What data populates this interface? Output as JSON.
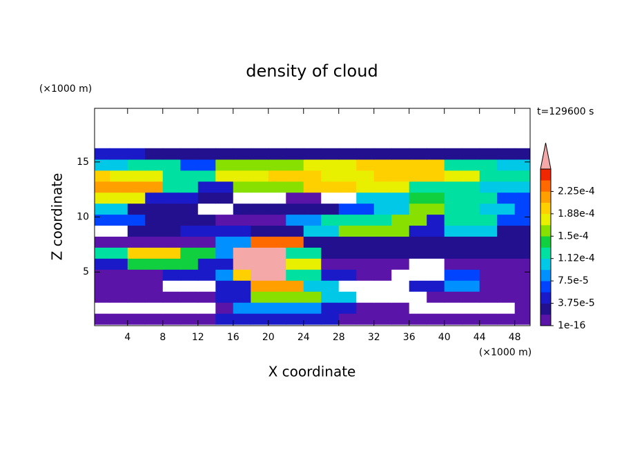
{
  "chart_data": {
    "type": "contour",
    "title": "density of cloud",
    "x_label": "X coordinate",
    "y_label": "Z coordinate",
    "x_unit": "(×1000 m)",
    "y_unit": "(×1000 m)",
    "annotation": "t=129600 s",
    "xlim": [
      0.25,
      49.75
    ],
    "ylim": [
      0.125,
      19.875
    ],
    "xticks": [
      4,
      8,
      12,
      16,
      20,
      24,
      28,
      32,
      36,
      40,
      44,
      48
    ],
    "yticks": [
      5,
      10,
      15
    ],
    "x": [
      1,
      3,
      5,
      7,
      9,
      11,
      13,
      15,
      17,
      19,
      21,
      23,
      25,
      27,
      29,
      31,
      33,
      35,
      37,
      39,
      41,
      43,
      45,
      47,
      49
    ],
    "z": [
      0.75,
      1.75,
      2.75,
      3.75,
      4.75,
      5.75,
      6.75,
      7.75,
      8.75,
      9.75,
      10.75,
      11.75,
      12.75,
      13.75,
      14.75,
      15.75
    ],
    "values": [
      [
        1e-05,
        1e-05,
        1e-05,
        1e-05,
        1e-05,
        1e-05,
        1e-05,
        4e-05,
        4e-05,
        4e-05,
        4e-05,
        4e-05,
        4e-05,
        4e-05,
        1e-05,
        1e-05,
        1e-05,
        1e-05,
        1e-05,
        1e-05,
        1e-05,
        1e-05,
        1e-05,
        1e-05,
        1e-05
      ],
      [
        0,
        0,
        0,
        0,
        0,
        0,
        0,
        1e-05,
        8e-05,
        8e-05,
        8e-05,
        8e-05,
        8e-05,
        5e-05,
        5e-05,
        1e-05,
        1e-05,
        1e-05,
        0,
        0,
        0,
        0,
        0,
        0,
        1e-05
      ],
      [
        1e-05,
        1e-05,
        1e-05,
        1e-05,
        1e-05,
        1e-05,
        1e-05,
        5e-05,
        5e-05,
        0.00015,
        0.00015,
        0.00015,
        0.00015,
        0.0001,
        0.0001,
        0,
        0,
        0,
        0,
        1e-05,
        1e-05,
        1e-05,
        1e-05,
        1e-05,
        1e-05
      ],
      [
        1e-05,
        1e-05,
        1e-05,
        1e-05,
        0,
        0,
        0,
        4e-05,
        4e-05,
        0.00021,
        0.00021,
        0.00021,
        0.0001,
        0.0001,
        0,
        0,
        0,
        0,
        4e-05,
        4e-05,
        9e-05,
        9e-05,
        1e-05,
        1e-05,
        1e-05
      ],
      [
        1e-05,
        1e-05,
        1e-05,
        1e-05,
        5e-05,
        5e-05,
        5e-05,
        9e-05,
        0.0002,
        0.0003,
        0.0003,
        0.00013,
        0.00013,
        5e-05,
        5e-05,
        1e-05,
        1e-05,
        0,
        0,
        0,
        6e-05,
        6e-05,
        1e-05,
        1e-05,
        1e-05
      ],
      [
        5e-05,
        5e-05,
        0.00014,
        0.00014,
        0.00014,
        0.00014,
        5e-05,
        5e-05,
        0.0003,
        0.0003,
        0.0003,
        0.00018,
        0.00018,
        1e-05,
        1e-05,
        1e-05,
        1e-05,
        1e-05,
        0,
        0,
        1e-05,
        1e-05,
        1e-05,
        1e-05,
        1e-05
      ],
      [
        0.00013,
        0.00013,
        0.00019,
        0.00019,
        0.00019,
        0.00014,
        0.00014,
        9e-05,
        0.0003,
        0.0003,
        0.0003,
        0.00013,
        0.00013,
        2e-05,
        2e-05,
        2e-05,
        2e-05,
        2e-05,
        2e-05,
        2e-05,
        2e-05,
        2e-05,
        2e-05,
        2e-05,
        2e-05
      ],
      [
        1e-05,
        1e-05,
        1e-05,
        1.5e-05,
        1.5e-05,
        1.5e-05,
        1.5e-05,
        9e-05,
        9e-05,
        0.00024,
        0.00024,
        0.00024,
        2e-05,
        2e-05,
        2e-05,
        2e-05,
        2e-05,
        2e-05,
        2e-05,
        2e-05,
        2e-05,
        2e-05,
        2e-05,
        2e-05,
        2e-05
      ],
      [
        0,
        0,
        2e-05,
        2e-05,
        2e-05,
        4e-05,
        4e-05,
        4e-05,
        4e-05,
        2e-05,
        2e-05,
        2e-05,
        0.0001,
        0.0001,
        0.00015,
        0.00015,
        0.00015,
        0.00015,
        5e-05,
        5e-05,
        0.0001,
        0.0001,
        0.0001,
        2e-05,
        2e-05
      ],
      [
        6e-05,
        6e-05,
        6e-05,
        2e-05,
        2e-05,
        2e-05,
        2e-05,
        1e-05,
        1e-05,
        1e-05,
        1e-05,
        9e-05,
        9e-05,
        0.00013,
        0.00013,
        0.00013,
        0.00013,
        0.00016,
        0.00016,
        5e-05,
        0.00013,
        0.00013,
        0.00013,
        6e-05,
        6e-05
      ],
      [
        0.0001,
        0.0001,
        2e-05,
        2e-05,
        2e-05,
        2e-05,
        0,
        0,
        2e-05,
        2e-05,
        2e-05,
        2e-05,
        2e-05,
        2e-05,
        6e-05,
        6e-05,
        0.0001,
        0.0001,
        0.00016,
        0.00016,
        0.00013,
        0.00013,
        0.0001,
        0.0001,
        6e-05
      ],
      [
        0.00017,
        0.00017,
        0.00017,
        5e-05,
        5e-05,
        5e-05,
        2e-05,
        2e-05,
        0,
        0,
        0,
        1e-05,
        1e-05,
        0,
        0,
        0.0001,
        0.0001,
        0.0001,
        0.00014,
        0.00014,
        0.00012,
        0.00012,
        0.00012,
        7e-05,
        7e-05
      ],
      [
        0.00021,
        0.00021,
        0.00021,
        0.00021,
        0.00012,
        0.00012,
        5e-05,
        5e-05,
        0.00015,
        0.00015,
        0.00015,
        0.00015,
        0.0002,
        0.0002,
        0.0002,
        0.00017,
        0.00017,
        0.00017,
        0.00013,
        0.00013,
        0.00013,
        0.00013,
        0.0001,
        0.0001,
        0.0001
      ],
      [
        0.00019,
        0.00017,
        0.00017,
        0.00017,
        0.00013,
        0.00013,
        0.00013,
        0.00017,
        0.00017,
        0.00017,
        0.0002,
        0.0002,
        0.0002,
        0.00017,
        0.00017,
        0.00017,
        0.0002,
        0.0002,
        0.0002,
        0.0002,
        0.00017,
        0.00017,
        0.00013,
        0.00013,
        0.00013
      ],
      [
        0.00011,
        0.00011,
        0.00013,
        0.00013,
        0.00013,
        6e-05,
        6e-05,
        0.00016,
        0.00016,
        0.00016,
        0.00016,
        0.00016,
        0.00018,
        0.00018,
        0.00018,
        0.00019,
        0.00019,
        0.00019,
        0.00019,
        0.00019,
        0.00013,
        0.00013,
        0.00013,
        0.0001,
        0.0001
      ],
      [
        5e-05,
        5e-05,
        5e-05,
        3e-05,
        3e-05,
        3e-05,
        3e-05,
        3e-05,
        3e-05,
        3e-05,
        3e-05,
        3e-05,
        3e-05,
        3e-05,
        3e-05,
        3e-05,
        3e-05,
        3e-05,
        3e-05,
        3e-05,
        3e-05,
        3e-05,
        3e-05,
        3e-05,
        3e-05
      ]
    ],
    "colorbar": {
      "levels": [
        1e-16,
        1.875e-05,
        3.75e-05,
        5.625e-05,
        7.5e-05,
        9.375e-05,
        0.000112,
        0.00013125,
        0.00015,
        0.00016875,
        0.000188,
        0.00020625,
        0.000225,
        0.00024375,
        0.0002625
      ],
      "colors": [
        "#5a14a8",
        "#22108e",
        "#1a1ac8",
        "#0044ff",
        "#0090ff",
        "#00c8e6",
        "#00e0a0",
        "#10d040",
        "#88e000",
        "#e8f000",
        "#ffd000",
        "#ffa000",
        "#ff6a00",
        "#f02800"
      ],
      "extend_color": "#f4a8a8",
      "ticks": [
        {
          "value": 1e-16,
          "label": "1e-16"
        },
        {
          "value": 3.75e-05,
          "label": "3.75e-5"
        },
        {
          "value": 7.5e-05,
          "label": "7.5e-5"
        },
        {
          "value": 0.000112,
          "label": "1.12e-4"
        },
        {
          "value": 0.00015,
          "label": "1.5e-4"
        },
        {
          "value": 0.000188,
          "label": "1.88e-4"
        },
        {
          "value": 0.000225,
          "label": "2.25e-4"
        }
      ]
    }
  }
}
